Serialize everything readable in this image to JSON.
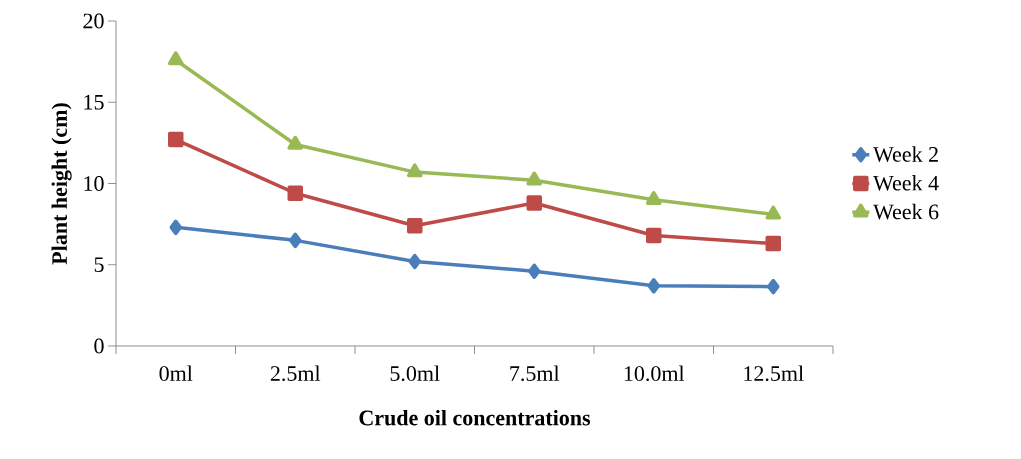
{
  "chart_data": {
    "type": "line",
    "xlabel": "Crude oil concentrations",
    "ylabel": "Plant height (cm)",
    "categories": [
      "0ml",
      "2.5ml",
      "5.0ml",
      "7.5ml",
      "10.0ml",
      "12.5ml"
    ],
    "series": [
      {
        "name": "Week 2",
        "color": "#4a7ebb",
        "marker": "diamond",
        "values": [
          7.3,
          6.5,
          5.2,
          4.6,
          3.7,
          3.65
        ]
      },
      {
        "name": "Week 4",
        "color": "#be4b48",
        "marker": "square",
        "values": [
          12.7,
          9.4,
          7.4,
          8.8,
          6.8,
          6.3
        ]
      },
      {
        "name": "Week 6",
        "color": "#98b954",
        "marker": "triangle",
        "values": [
          17.6,
          12.4,
          10.7,
          10.2,
          9.0,
          8.1
        ]
      }
    ],
    "ylim": [
      0,
      20
    ],
    "yticks": [
      0,
      5,
      10,
      15,
      20
    ],
    "grid": false,
    "legend": "right",
    "line_style": "solid"
  }
}
